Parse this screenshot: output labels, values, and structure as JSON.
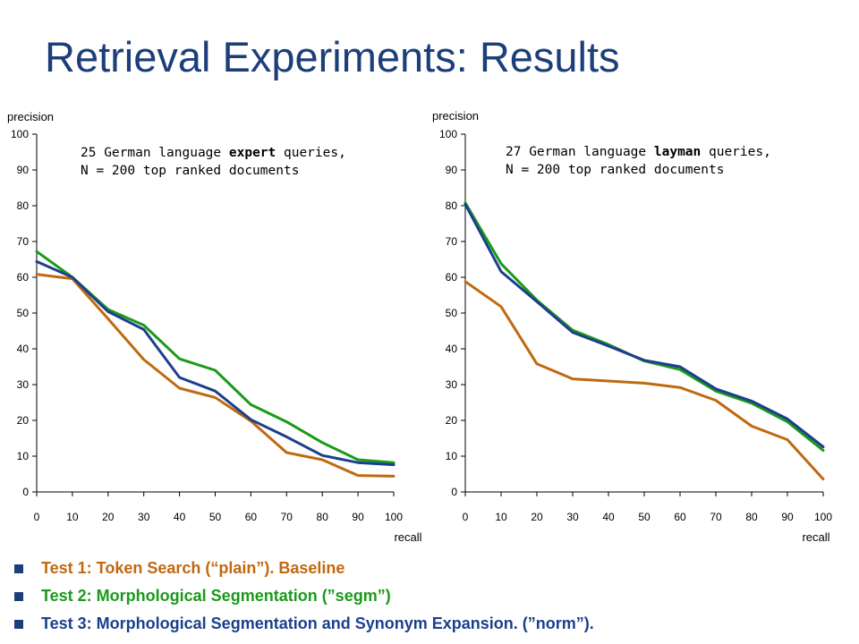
{
  "title": "Retrieval Experiments:  Results",
  "legend": [
    {
      "label": "Test 1: Token Search (“plain”). Baseline",
      "color": "#c0690f"
    },
    {
      "label": "Test 2: Morphological Segmentation (”segm”)",
      "color": "#1a9a1a"
    },
    {
      "label": "Test 3: Morphological Segmentation and Synonym Expansion. (”norm”).",
      "color": "#1c3f8c"
    }
  ],
  "chart_data": [
    {
      "type": "line",
      "annotation": {
        "line1_pre": "25 German language ",
        "line1_em": "expert",
        "line1_post": " queries,",
        "line2": "N = 200 top ranked documents"
      },
      "xlabel": "recall",
      "ylabel": "precision",
      "xlim": [
        0,
        100
      ],
      "ylim": [
        0,
        100
      ],
      "xticks": [
        0,
        10,
        20,
        30,
        40,
        50,
        60,
        70,
        80,
        90,
        100
      ],
      "yticks": [
        0,
        10,
        20,
        30,
        40,
        50,
        60,
        70,
        80,
        90,
        100
      ],
      "x": [
        0,
        10,
        20,
        30,
        40,
        50,
        60,
        70,
        80,
        90,
        100
      ],
      "series": [
        {
          "color": "#c0690f",
          "values": [
            60.8,
            59.6,
            48.4,
            37,
            29,
            26.4,
            19.8,
            11,
            9,
            4.6,
            4.4
          ]
        },
        {
          "color": "#1a9a1a",
          "values": [
            67.2,
            60,
            51,
            46.6,
            37.2,
            34,
            24.4,
            19.6,
            13.8,
            9,
            8.2
          ]
        },
        {
          "color": "#1c3f8c",
          "values": [
            64.4,
            60,
            50.4,
            45.4,
            32,
            28.2,
            20.2,
            15.4,
            10.2,
            8.2,
            7.6
          ]
        }
      ]
    },
    {
      "type": "line",
      "annotation": {
        "line1_pre": "27 German language ",
        "line1_em": "layman",
        "line1_post": " queries,",
        "line2": "N = 200 top ranked documents"
      },
      "xlabel": "recall",
      "ylabel": "precision",
      "xlim": [
        0,
        100
      ],
      "ylim": [
        0,
        100
      ],
      "xticks": [
        0,
        10,
        20,
        30,
        40,
        50,
        60,
        70,
        80,
        90,
        100
      ],
      "yticks": [
        0,
        10,
        20,
        30,
        40,
        50,
        60,
        70,
        80,
        90,
        100
      ],
      "x": [
        0,
        10,
        20,
        30,
        40,
        50,
        60,
        70,
        80,
        90,
        100
      ],
      "series": [
        {
          "color": "#c0690f",
          "values": [
            58.8,
            51.8,
            35.8,
            31.6,
            31,
            30.4,
            29.2,
            25.6,
            18.4,
            14.6,
            3.6
          ]
        },
        {
          "color": "#1a9a1a",
          "values": [
            80.8,
            63.8,
            53.6,
            45.2,
            41.2,
            36.6,
            34.2,
            28.2,
            24.8,
            19.6,
            11.6
          ]
        },
        {
          "color": "#1c3f8c",
          "values": [
            80.4,
            61.6,
            53.2,
            44.6,
            40.8,
            36.8,
            35,
            28.8,
            25.4,
            20.4,
            12.6
          ]
        }
      ]
    }
  ]
}
